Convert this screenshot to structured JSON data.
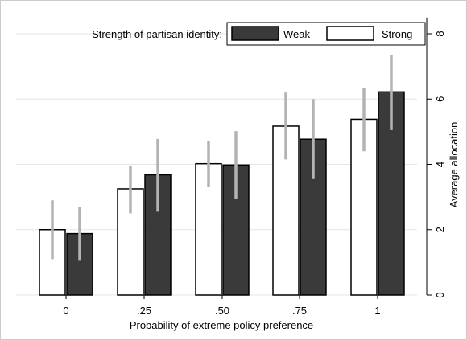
{
  "chart_data": {
    "type": "bar",
    "categories": [
      "0",
      ".25",
      ".50",
      ".75",
      "1"
    ],
    "xlabel": "Probability of extreme policy preference",
    "ylabel": "Average allocation",
    "ylim": [
      0,
      8.5
    ],
    "yticks": [
      0,
      2,
      4,
      6,
      8
    ],
    "grid": true,
    "y_axis_side": "right",
    "legend": {
      "title": "Strength of partisan identity:",
      "placement": "top"
    },
    "series": [
      {
        "name": "Strong",
        "color": "#ffffff",
        "values": [
          2.0,
          3.25,
          4.02,
          5.17,
          5.38
        ],
        "ci_low": [
          1.1,
          2.5,
          3.3,
          4.15,
          4.4
        ],
        "ci_high": [
          2.9,
          3.95,
          4.72,
          6.2,
          6.35
        ]
      },
      {
        "name": "Weak",
        "color": "#3a3a3a",
        "values": [
          1.88,
          3.68,
          3.98,
          4.77,
          6.22
        ],
        "ci_low": [
          1.05,
          2.55,
          2.95,
          3.55,
          5.05
        ],
        "ci_high": [
          2.7,
          4.78,
          5.02,
          6.0,
          7.35
        ]
      }
    ],
    "legend_order": [
      "Weak",
      "Strong"
    ]
  }
}
